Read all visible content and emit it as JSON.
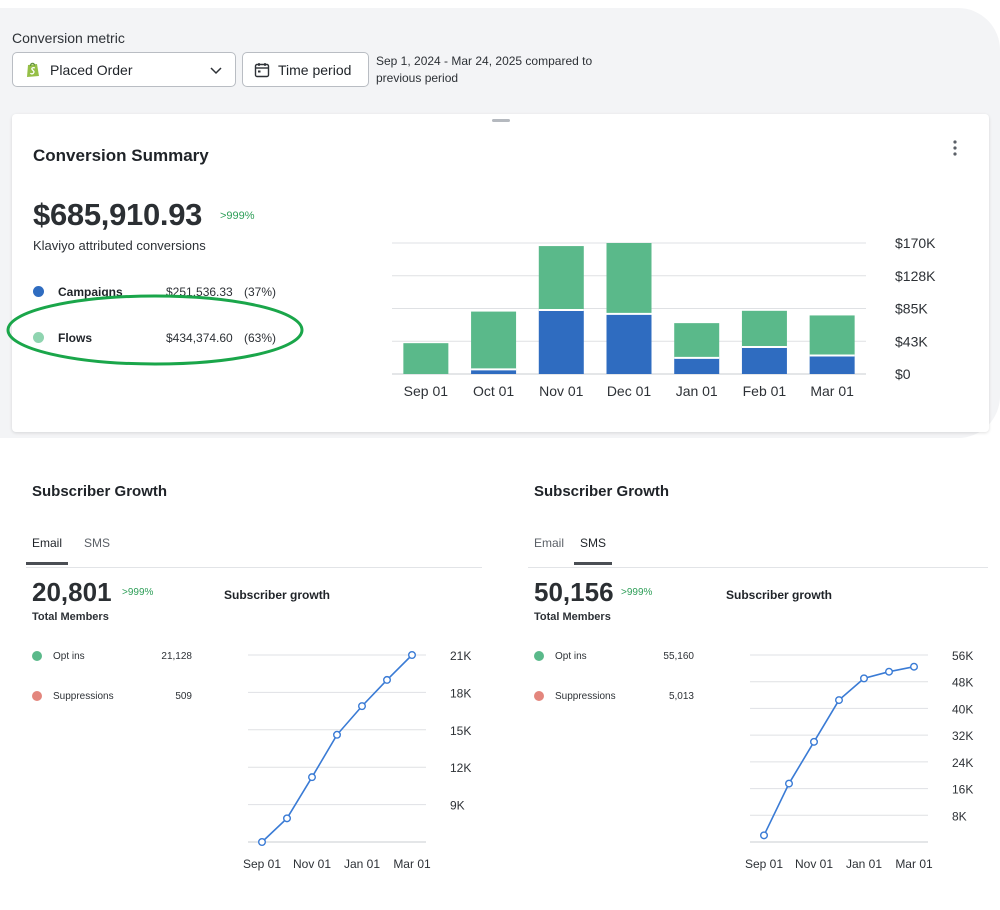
{
  "filters": {
    "metric_label": "Conversion metric",
    "metric_value": "Placed Order",
    "time_button": "Time period",
    "period_text": "Sep 1, 2024 - Mar 24, 2025 compared to previous period"
  },
  "conversion_summary": {
    "title": "Conversion Summary",
    "total": "$685,910.93",
    "delta": ">999%",
    "subtitle": "Klaviyo attributed conversions",
    "legend": [
      {
        "name": "Campaigns",
        "value": "$251,536.33",
        "pct": "(37%)",
        "color": "#2f6cc0"
      },
      {
        "name": "Flows",
        "value": "$434,374.60",
        "pct": "(63%)",
        "color": "#5ab98a"
      }
    ]
  },
  "subscriber_email": {
    "title": "Subscriber Growth",
    "tabs": [
      "Email",
      "SMS"
    ],
    "active_tab": 0,
    "total": "20,801",
    "delta": ">999%",
    "total_label": "Total Members",
    "legend": [
      {
        "name": "Opt ins",
        "value": "21,128",
        "color": "#5ab98a"
      },
      {
        "name": "Suppressions",
        "value": "509",
        "color": "#e3867d"
      }
    ],
    "chart_title": "Subscriber growth"
  },
  "subscriber_sms": {
    "title": "Subscriber Growth",
    "tabs": [
      "Email",
      "SMS"
    ],
    "active_tab": 1,
    "total": "50,156",
    "delta": ">999%",
    "total_label": "Total Members",
    "legend": [
      {
        "name": "Opt ins",
        "value": "55,160",
        "color": "#5ab98a"
      },
      {
        "name": "Suppressions",
        "value": "5,013",
        "color": "#e3867d"
      }
    ],
    "chart_title": "Subscriber growth"
  },
  "chart_data": [
    {
      "id": "conversion",
      "type": "bar",
      "stacked": true,
      "categories": [
        "Sep 01",
        "Oct 01",
        "Nov 01",
        "Dec 01",
        "Jan 01",
        "Feb 01",
        "Mar 01"
      ],
      "series": [
        {
          "name": "Campaigns",
          "color": "#2f6cc0",
          "values": [
            0,
            6000,
            83000,
            78000,
            21000,
            35000,
            24000
          ]
        },
        {
          "name": "Flows",
          "color": "#5ab98a",
          "values": [
            40000,
            75000,
            83000,
            92000,
            45000,
            47000,
            52000
          ]
        }
      ],
      "yticks": [
        "$0",
        "$43K",
        "$85K",
        "$128K",
        "$170K"
      ],
      "ylim": [
        0,
        170000
      ],
      "legend": "none",
      "grid": true
    },
    {
      "id": "email",
      "type": "line",
      "color": "#3a7bd5",
      "x": [
        "Sep 01",
        "",
        "Nov 01",
        "",
        "Jan 01",
        "",
        "Mar 01"
      ],
      "xticks": [
        "Sep 01",
        "Nov 01",
        "Jan 01",
        "Mar 01"
      ],
      "values": [
        6000,
        7900,
        11200,
        14600,
        16900,
        19000,
        21000
      ],
      "yticks": [
        "9K",
        "12K",
        "15K",
        "18K",
        "21K"
      ],
      "ylim": [
        6000,
        21000
      ],
      "grid": true
    },
    {
      "id": "sms",
      "type": "line",
      "color": "#3a7bd5",
      "x": [
        "Sep 01",
        "",
        "Nov 01",
        "",
        "Jan 01",
        "",
        "Mar 01"
      ],
      "xticks": [
        "Sep 01",
        "Nov 01",
        "Jan 01",
        "Mar 01"
      ],
      "values": [
        2000,
        17500,
        30000,
        42500,
        49000,
        51000,
        52500
      ],
      "yticks": [
        "8K",
        "16K",
        "24K",
        "32K",
        "40K",
        "48K",
        "56K"
      ],
      "ylim": [
        0,
        56000
      ],
      "grid": true
    }
  ]
}
